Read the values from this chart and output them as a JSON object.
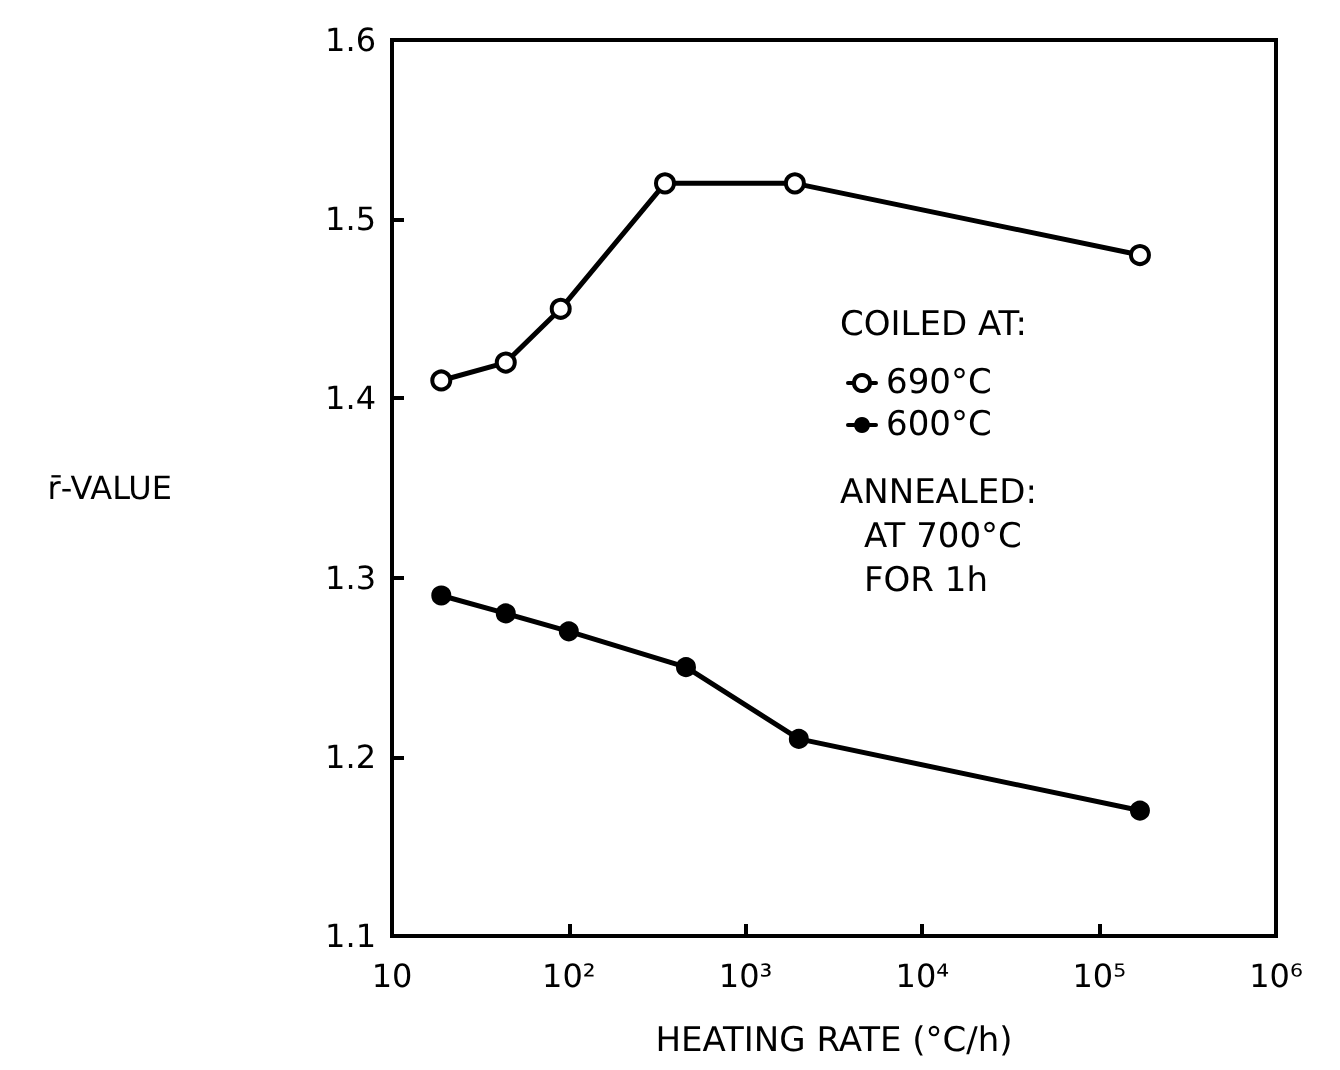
{
  "chart_data": {
    "type": "line",
    "xlabel": "HEATING RATE (°C/h)",
    "ylabel": "r̄-VALUE",
    "legend_title": "COILED AT:",
    "legend": "center",
    "log": "x",
    "marker": "circle",
    "line_style": "solid",
    "grid": false,
    "xlim": [
      10,
      1000000
    ],
    "xticks": [
      10,
      {
        "value": 100,
        "label": "10²"
      },
      {
        "value": 1000,
        "label": "10³"
      },
      {
        "value": 10000,
        "label": "10⁴"
      },
      {
        "value": 100000,
        "label": "10⁵"
      },
      {
        "value": 1000000,
        "label": "10⁶"
      }
    ],
    "ylim": [
      1.1,
      1.6
    ],
    "yticks": [
      1.1,
      1.2,
      1.3,
      1.4,
      1.5,
      1.6
    ],
    "series": [
      {
        "name": "690°C",
        "color": "#000000",
        "x": [
          19,
          44,
          90,
          350,
          1900,
          170000
        ],
        "values": [
          1.41,
          1.42,
          1.45,
          1.52,
          1.52,
          1.48
        ]
      },
      {
        "name": "600°C",
        "color": "#000000",
        "x": [
          19,
          44,
          100,
          460,
          2000,
          170000
        ],
        "values": [
          1.29,
          1.28,
          1.27,
          1.25,
          1.21,
          1.17
        ]
      }
    ],
    "annotations": [
      "ANNEALED:",
      "AT 700°C",
      "FOR 1h"
    ]
  }
}
